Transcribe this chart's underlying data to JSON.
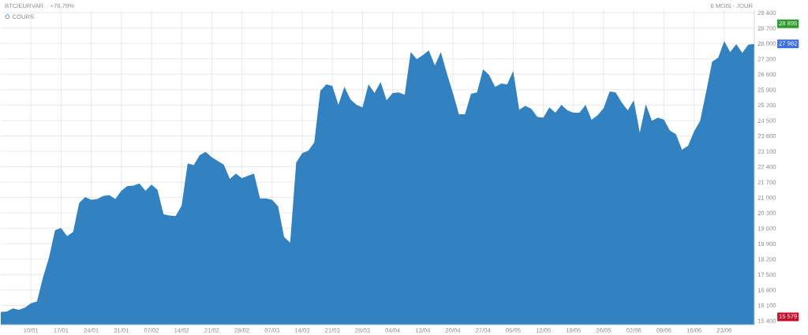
{
  "chart_data": {
    "type": "area",
    "title": "BTC/EUR",
    "subtitle": "VAR. : +76,79%",
    "annotations": [
      "6 MOIS - JOUR",
      "28 895",
      "27 982",
      "15 579"
    ],
    "categories": [
      null,
      null,
      null,
      null,
      null,
      "10/01",
      null,
      null,
      null,
      null,
      "17/01",
      null,
      null,
      null,
      null,
      "24/01",
      null,
      null,
      null,
      null,
      "31/01",
      null,
      null,
      null,
      null,
      "07/02",
      null,
      null,
      null,
      null,
      "14/02",
      null,
      null,
      null,
      null,
      "21/02",
      null,
      null,
      null,
      null,
      "28/02",
      null,
      null,
      null,
      null,
      "07/03",
      null,
      null,
      null,
      null,
      "14/03",
      null,
      null,
      null,
      null,
      "21/03",
      null,
      null,
      null,
      null,
      "28/03",
      null,
      null,
      null,
      null,
      "04/04",
      null,
      null,
      null,
      null,
      "13/04",
      null,
      null,
      null,
      null,
      "20/04",
      null,
      null,
      null,
      null,
      "27/04",
      null,
      null,
      null,
      null,
      "05/05",
      null,
      null,
      null,
      null,
      "12/05",
      null,
      null,
      null,
      null,
      "19/05",
      null,
      null,
      null,
      null,
      "26/05",
      null,
      null,
      null,
      null,
      "02/06",
      null,
      null,
      null,
      null,
      "09/06",
      null,
      null,
      null,
      null,
      "16/06",
      null,
      null,
      null,
      null,
      "23/06",
      null,
      null,
      null,
      null,
      null
    ],
    "series": [
      {
        "name": "COURS",
        "color": "#3282c2",
        "values": [
          15800,
          15820,
          15960,
          15900,
          16000,
          16200,
          16280,
          17370,
          18270,
          19520,
          19620,
          19250,
          19440,
          20750,
          21020,
          20900,
          20930,
          21080,
          21110,
          20930,
          21310,
          21520,
          21540,
          21640,
          21310,
          21590,
          21350,
          20240,
          20180,
          20160,
          20630,
          22550,
          22470,
          22930,
          23070,
          22830,
          22660,
          22490,
          21850,
          22090,
          21880,
          21990,
          22090,
          20960,
          20960,
          20900,
          20600,
          19200,
          18950,
          22590,
          23020,
          23130,
          23500,
          25850,
          26140,
          26070,
          25210,
          26030,
          25460,
          25210,
          25100,
          26140,
          25750,
          26250,
          25420,
          25750,
          25780,
          25670,
          27610,
          27290,
          27470,
          27680,
          27000,
          27610,
          26640,
          25750,
          24780,
          24780,
          25710,
          25780,
          26820,
          26570,
          26030,
          26180,
          26140,
          26750,
          24990,
          25170,
          25030,
          24670,
          24630,
          25100,
          24850,
          25210,
          24960,
          24850,
          24850,
          25210,
          24530,
          24740,
          25060,
          25820,
          25780,
          25320,
          24960,
          25420,
          23950,
          25240,
          24490,
          24630,
          24540,
          24040,
          23880,
          23170,
          23350,
          24000,
          24480,
          25790,
          27170,
          27350,
          28100,
          27610,
          27970,
          27580,
          27940,
          27980
        ]
      }
    ],
    "ylim": [
      15220,
      29510
    ],
    "yticks": [
      {
        "value": 15400,
        "label": "15 400"
      },
      {
        "value": 16100,
        "label": "16 100"
      },
      {
        "value": 16800,
        "label": "16 800"
      },
      {
        "value": 17500,
        "label": "17 500"
      },
      {
        "value": 18200,
        "label": "18 200"
      },
      {
        "value": 18900,
        "label": "18 900"
      },
      {
        "value": 19600,
        "label": "19 600"
      },
      {
        "value": 20300,
        "label": "20 300"
      },
      {
        "value": 21000,
        "label": "21 000"
      },
      {
        "value": 21700,
        "label": "21 700"
      },
      {
        "value": 22400,
        "label": "22 400"
      },
      {
        "value": 23100,
        "label": "23 100"
      },
      {
        "value": 23800,
        "label": "23 800"
      },
      {
        "value": 24500,
        "label": "24 500"
      },
      {
        "value": 25200,
        "label": "25 200"
      },
      {
        "value": 25900,
        "label": "25 900"
      },
      {
        "value": 26600,
        "label": "26 600"
      },
      {
        "value": 27300,
        "label": "27 300"
      },
      {
        "value": 28000,
        "label": "28 000"
      },
      {
        "value": 28700,
        "label": "28 700"
      },
      {
        "value": 29400,
        "label": "29 400"
      }
    ],
    "grid": true,
    "legend": "top left"
  }
}
